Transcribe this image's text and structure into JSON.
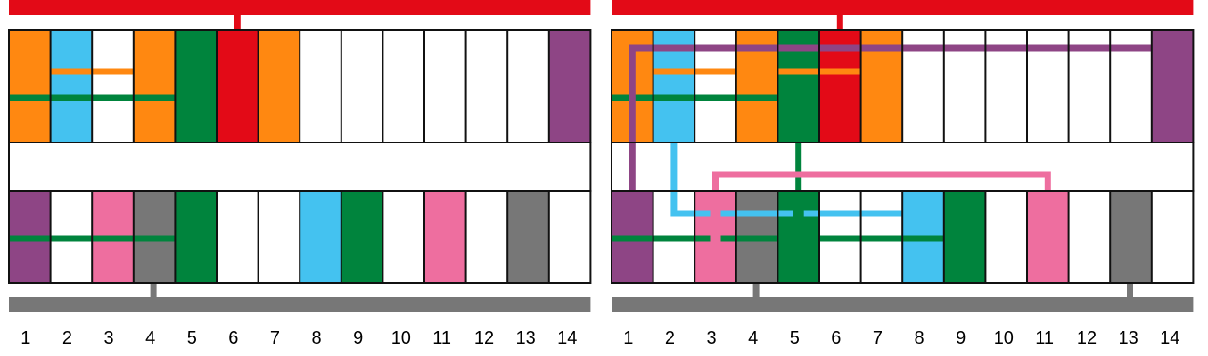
{
  "colors": {
    "orange": "#FF8811",
    "blue": "#44C2F0",
    "green": "#00843D",
    "red": "#E30A17",
    "purple": "#8E4585",
    "pink": "#EE6E9F",
    "gray": "#777777",
    "white": "#FFFFFF",
    "outline": "#111111"
  },
  "column_numbers": [
    "1",
    "2",
    "3",
    "4",
    "5",
    "6",
    "7",
    "8",
    "9",
    "10",
    "11",
    "12",
    "13",
    "14"
  ],
  "panels": [
    {
      "name": "left",
      "top_row": [
        "orange",
        "blue",
        "white",
        "orange",
        "green",
        "red",
        "orange",
        "white",
        "white",
        "white",
        "white",
        "white",
        "white",
        "purple"
      ],
      "bottom_row": [
        "purple",
        "white",
        "pink",
        "gray",
        "green",
        "white",
        "white",
        "blue",
        "green",
        "white",
        "pink",
        "white",
        "gray",
        "white"
      ],
      "top_bus_color": "red",
      "bottom_bus_color": "gray"
    },
    {
      "name": "right",
      "top_row": [
        "orange",
        "blue",
        "white",
        "orange",
        "green",
        "red",
        "orange",
        "white",
        "white",
        "white",
        "white",
        "white",
        "white",
        "purple"
      ],
      "bottom_row": [
        "purple",
        "white",
        "pink",
        "gray",
        "green",
        "white",
        "white",
        "blue",
        "green",
        "white",
        "pink",
        "white",
        "gray",
        "white"
      ],
      "top_bus_color": "red",
      "bottom_bus_color": "gray"
    }
  ]
}
